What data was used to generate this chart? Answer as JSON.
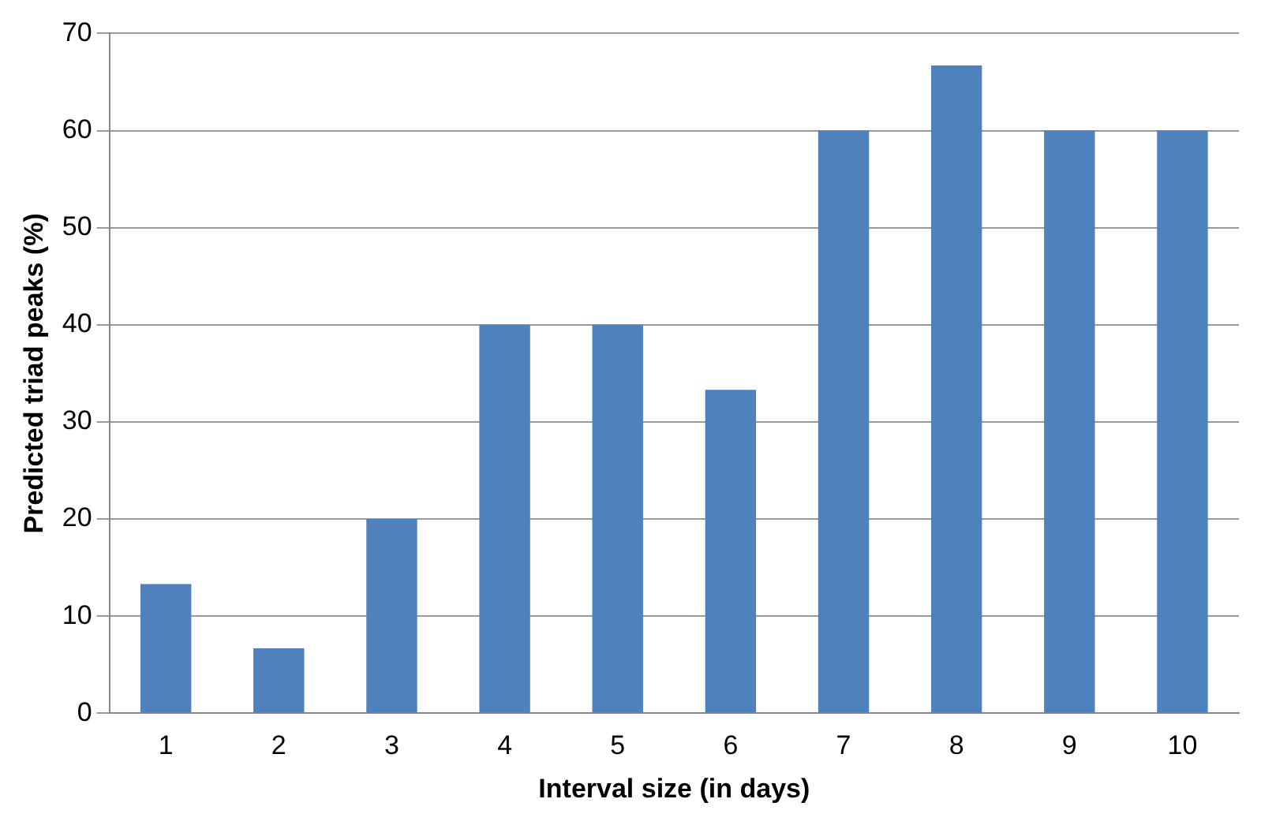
{
  "chart_data": {
    "type": "bar",
    "xlabel": "Interval size (in days)",
    "ylabel": "Predicted triad peaks (%)",
    "categories": [
      "1",
      "2",
      "3",
      "4",
      "5",
      "6",
      "7",
      "8",
      "9",
      "10"
    ],
    "values": [
      13.3,
      6.7,
      20,
      40,
      40,
      33.3,
      60,
      66.7,
      60,
      60
    ],
    "color": "#4f81bd",
    "ylim": [
      0,
      70
    ],
    "yticks": [
      0,
      10,
      20,
      30,
      40,
      50,
      60,
      70
    ],
    "grid": "y"
  }
}
